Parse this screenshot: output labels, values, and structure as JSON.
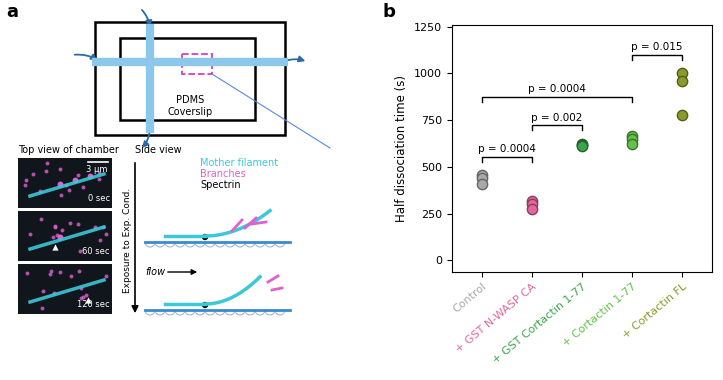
{
  "diagram": {
    "panel_labels": [
      "a",
      "b"
    ],
    "chamber": {
      "labels": [
        "PDMS",
        "Coverslip"
      ]
    },
    "top_view": {
      "title": "Top view of chamber",
      "scale_bar": "3 μm",
      "times": [
        "0 sec",
        "60 sec",
        "120 sec"
      ]
    },
    "side_view": {
      "title": "Side view",
      "legend": [
        {
          "name": "Mother filament",
          "color": "#3cc8d8"
        },
        {
          "name": "Branches",
          "color": "#e060d0"
        },
        {
          "name": "Spectrin",
          "color": "#000000"
        }
      ],
      "axis_label": "Exposure to Exp. Cond.",
      "flow": "flow"
    }
  },
  "chart_data": {
    "type": "scatter",
    "y_label": "Half dissociation time (s)",
    "categories": [
      "Control",
      "+ GST N-WASP CA",
      "+ GST Cortactin 1-77",
      "+ Cortactin 1-77",
      "+ Cortactin FL"
    ],
    "values": [
      [
        455,
        440,
        410
      ],
      [
        320,
        300,
        275
      ],
      [
        625,
        615,
        610
      ],
      [
        665,
        650,
        625
      ],
      [
        1000,
        960,
        780
      ]
    ],
    "colors": [
      "#a9a9a9",
      "#e2679c",
      "#3aa54a",
      "#62c24a",
      "#8c9a2c"
    ],
    "ylim": [
      -60,
      1260
    ],
    "yticks": [
      0,
      250,
      500,
      750,
      1000,
      1250
    ],
    "grid": false,
    "comparisons": [
      {
        "between": [
          "Control",
          "+ GST N-WASP CA"
        ],
        "label": "p = 0.0004"
      },
      {
        "between": [
          "+ GST N-WASP CA",
          "+ GST Cortactin 1-77"
        ],
        "label": "p = 0.002"
      },
      {
        "between": [
          "Control",
          "+ Cortactin 1-77"
        ],
        "label": "p = 0.0004"
      },
      {
        "between": [
          "+ Cortactin 1-77",
          "+ Cortactin FL"
        ],
        "label": "p = 0.015"
      }
    ]
  }
}
